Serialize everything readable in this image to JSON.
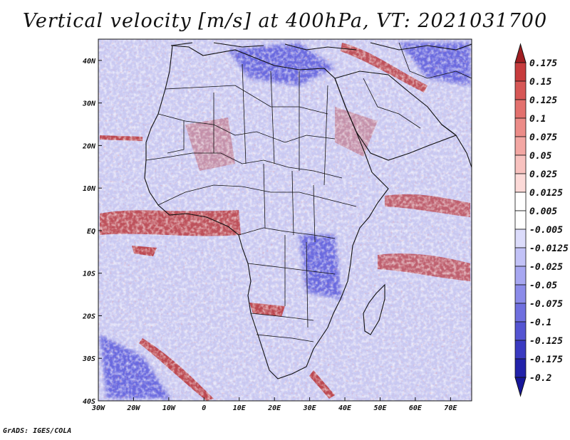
{
  "title": "Vertical velocity [m/s] at 400hPa, VT: 2021031700",
  "credit": "GrADS: IGES/COLA",
  "map": {
    "variable": "Vertical velocity",
    "units": "m/s",
    "level": "400hPa",
    "valid_time": "2021031700",
    "lon_range": [
      -30,
      76
    ],
    "lat_range": [
      -40,
      45
    ],
    "x_ticks": [
      {
        "value": -30,
        "label": "30W"
      },
      {
        "value": -20,
        "label": "20W"
      },
      {
        "value": -10,
        "label": "10W"
      },
      {
        "value": 0,
        "label": "0"
      },
      {
        "value": 10,
        "label": "10E"
      },
      {
        "value": 20,
        "label": "20E"
      },
      {
        "value": 30,
        "label": "30E"
      },
      {
        "value": 40,
        "label": "40E"
      },
      {
        "value": 50,
        "label": "50E"
      },
      {
        "value": 60,
        "label": "60E"
      },
      {
        "value": 70,
        "label": "70E"
      }
    ],
    "y_ticks": [
      {
        "value": 40,
        "label": "40N"
      },
      {
        "value": 30,
        "label": "30N"
      },
      {
        "value": 20,
        "label": "20N"
      },
      {
        "value": 10,
        "label": "10N"
      },
      {
        "value": 0,
        "label": "EQ"
      },
      {
        "value": -10,
        "label": "10S"
      },
      {
        "value": -20,
        "label": "20S"
      },
      {
        "value": -30,
        "label": "30S"
      },
      {
        "value": -40,
        "label": "40S"
      }
    ]
  },
  "colorbar": {
    "levels": [
      {
        "label": "0.175",
        "color": "#b5262a"
      },
      {
        "label": "0.15",
        "color": "#c73c3d"
      },
      {
        "label": "0.125",
        "color": "#d75756"
      },
      {
        "label": "0.1",
        "color": "#e3716e"
      },
      {
        "label": "0.075",
        "color": "#ec8c88"
      },
      {
        "label": "0.05",
        "color": "#f3a7a3"
      },
      {
        "label": "0.025",
        "color": "#f8c2bf"
      },
      {
        "label": "0.0125",
        "color": "#fcdad8"
      },
      {
        "label": "0.005",
        "color": "#ffffff"
      },
      {
        "label": "-0.005",
        "color": "#ffffff"
      },
      {
        "label": "-0.0125",
        "color": "#dcdcfb"
      },
      {
        "label": "-0.025",
        "color": "#c2c2f7"
      },
      {
        "label": "-0.05",
        "color": "#a7a7f1"
      },
      {
        "label": "-0.075",
        "color": "#8b8be9"
      },
      {
        "label": "-0.1",
        "color": "#6f6fdf"
      },
      {
        "label": "-0.125",
        "color": "#5454d2"
      },
      {
        "label": "-0.175",
        "color": "#3a3ac1"
      },
      {
        "label": "-0.2",
        "color": "#2222aa"
      }
    ],
    "top_arrow_color": "#a01e22",
    "bottom_arrow_color": "#16169a"
  },
  "highlights": {
    "updraft_color": "#b82828",
    "downdraft_color": "#6a6ae0",
    "background_color": "#c9c9f2"
  }
}
